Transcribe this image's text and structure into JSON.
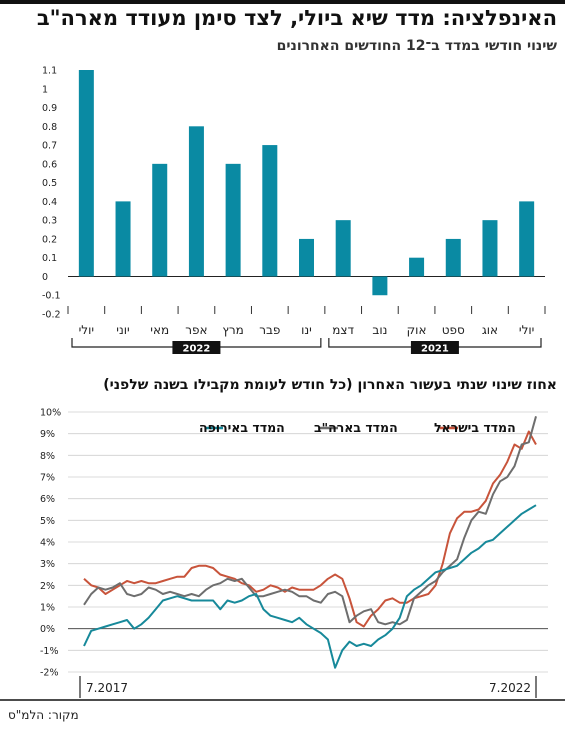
{
  "title": "האינפלציה: מדד שיא ביולי, לצד סימן מעודד מארה\"ב",
  "source": "מקור: הלמ\"ס",
  "chart_data": [
    {
      "type": "bar",
      "title": "שינוי חודשי במדד ב־12 החודשים האחרונים",
      "categories": [
        "יולי",
        "אוג",
        "ספט",
        "אוק",
        "נוב",
        "דצמ",
        "ינו",
        "פבר",
        "מרץ",
        "אפר",
        "מאי",
        "יוני",
        "יולי"
      ],
      "values": [
        0.4,
        0.3,
        0.2,
        0.1,
        -0.1,
        0.3,
        0.2,
        0.7,
        0.6,
        0.8,
        0.6,
        0.4,
        1.1
      ],
      "years": [
        {
          "label": "2021",
          "from": 0,
          "to": 5
        },
        {
          "label": "2022",
          "from": 6,
          "to": 12
        }
      ],
      "yticks": [
        "1.1",
        "1",
        "0.9",
        "0.8",
        "0.7",
        "0.6",
        "0.5",
        "0.4",
        "0.3",
        "0.2",
        "0.1",
        "0",
        "-0.1",
        "-0.2"
      ],
      "ylim": [
        -0.2,
        1.1
      ],
      "color": "#0a8aa3"
    },
    {
      "type": "line",
      "title": "אחוז שינוי שנתי בעשור האחרון (כל חודש לעומת מקבילו בשנה שלפני)",
      "xlabels": [
        "7.2017",
        "7.2022"
      ],
      "yticks": [
        "10%",
        "9%",
        "8%",
        "7%",
        "6%",
        "5%",
        "4%",
        "3%",
        "2%",
        "1%",
        "0%",
        "-1%",
        "-2%"
      ],
      "ylim": [
        -2,
        10
      ],
      "grid": true,
      "legend_position": "top",
      "series": [
        {
          "name": "המדד בישראל",
          "color": "#c8543b",
          "values": [
            2.3,
            2.0,
            1.9,
            1.6,
            1.8,
            2.0,
            2.2,
            2.1,
            2.2,
            2.1,
            2.1,
            2.2,
            2.3,
            2.4,
            2.4,
            2.8,
            2.9,
            2.9,
            2.8,
            2.5,
            2.4,
            2.3,
            2.1,
            2.0,
            1.7,
            1.8,
            2.0,
            1.9,
            1.7,
            1.9,
            1.8,
            1.8,
            1.8,
            2.0,
            2.3,
            2.5,
            2.3,
            1.4,
            0.3,
            0.1,
            0.6,
            0.9,
            1.3,
            1.4,
            1.2,
            1.2,
            1.4,
            1.5,
            1.6,
            2.0,
            3.0,
            4.4,
            5.1,
            5.4,
            5.4,
            5.5,
            5.9,
            6.7,
            7.1,
            7.7,
            8.5,
            8.3,
            9.1,
            8.5
          ]
        },
        {
          "name": "המדד בארה\"ב",
          "color": "#6e6e6e",
          "values": [
            1.1,
            1.6,
            1.9,
            1.8,
            1.9,
            2.1,
            1.6,
            1.5,
            1.6,
            1.9,
            1.8,
            1.6,
            1.7,
            1.6,
            1.5,
            1.6,
            1.5,
            1.8,
            2.0,
            2.1,
            2.3,
            2.2,
            2.3,
            1.9,
            1.5,
            1.5,
            1.6,
            1.7,
            1.8,
            1.7,
            1.5,
            1.5,
            1.3,
            1.2,
            1.6,
            1.7,
            1.5,
            0.3,
            0.6,
            0.8,
            0.9,
            0.3,
            0.2,
            0.3,
            0.2,
            0.4,
            1.4,
            1.7,
            2.0,
            2.2,
            2.6,
            2.9,
            3.2,
            4.2,
            5.0,
            5.4,
            5.3,
            6.2,
            6.8,
            7.0,
            7.5,
            8.5,
            8.6,
            9.8
          ]
        },
        {
          "name": "המדד באירופה",
          "color": "#17899a",
          "values": [
            -0.8,
            -0.1,
            0.0,
            0.1,
            0.2,
            0.3,
            0.4,
            0.0,
            0.2,
            0.5,
            0.9,
            1.3,
            1.4,
            1.5,
            1.4,
            1.3,
            1.3,
            1.3,
            1.3,
            0.9,
            1.3,
            1.2,
            1.3,
            1.5,
            1.6,
            0.9,
            0.6,
            0.5,
            0.4,
            0.3,
            0.5,
            0.2,
            0.0,
            -0.2,
            -0.5,
            -1.8,
            -1.0,
            -0.6,
            -0.8,
            -0.7,
            -0.8,
            -0.5,
            -0.3,
            0.0,
            0.5,
            1.5,
            1.8,
            2.0,
            2.3,
            2.6,
            2.7,
            2.8,
            2.9,
            3.2,
            3.5,
            3.7,
            4.0,
            4.1,
            4.4,
            4.7,
            5.0,
            5.3,
            5.5,
            5.7
          ]
        }
      ]
    }
  ]
}
